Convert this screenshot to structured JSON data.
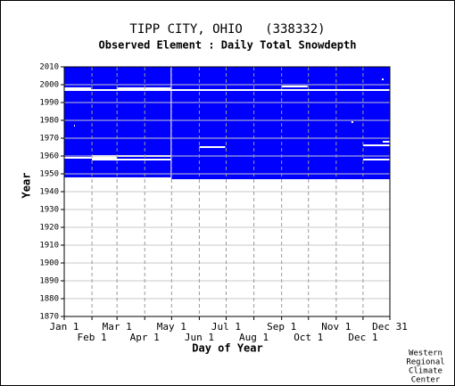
{
  "chart_data": {
    "type": "availability",
    "title": "TIPP CITY, OHIO   (338332)",
    "subtitle": "Observed Element : Daily Total Snowdepth",
    "x_label": "Day of Year",
    "y_label": "Year",
    "credit": [
      "Western",
      "Regional",
      "Climate",
      "Center"
    ],
    "color": "#0000ff",
    "grid": true,
    "xlim": [
      1,
      365
    ],
    "ylim": [
      1870,
      2010
    ],
    "yticks": [
      1870,
      1880,
      1890,
      1900,
      1910,
      1920,
      1930,
      1940,
      1950,
      1960,
      1970,
      1980,
      1990,
      2000,
      2010
    ],
    "xticks": [
      {
        "value": 1,
        "label": "Jan 1"
      },
      {
        "value": 32,
        "label": "Feb 1"
      },
      {
        "value": 60,
        "label": "Mar 1"
      },
      {
        "value": 91,
        "label": "Apr 1"
      },
      {
        "value": 121,
        "label": "May 1"
      },
      {
        "value": 152,
        "label": "Jun 1"
      },
      {
        "value": 182,
        "label": "Jul 1"
      },
      {
        "value": 213,
        "label": "Aug 1"
      },
      {
        "value": 244,
        "label": "Sep 1"
      },
      {
        "value": 274,
        "label": "Oct 1"
      },
      {
        "value": 305,
        "label": "Nov 1"
      },
      {
        "value": 335,
        "label": "Dec 1"
      },
      {
        "value": 365,
        "label": "Dec 31"
      }
    ],
    "periods": [
      {
        "year_start": 1948,
        "year_end": 2010,
        "day_start": 1,
        "day_end": 120
      },
      {
        "year_start": 1947,
        "year_end": 2010,
        "day_start": 121,
        "day_end": 365
      }
    ],
    "gaps": [
      {
        "year": 1997,
        "day_start": 1,
        "day_end": 365
      },
      {
        "year": 1998,
        "day_start": 1,
        "day_end": 31
      },
      {
        "year": 1998,
        "day_start": 60,
        "day_end": 120
      },
      {
        "year": 1999,
        "day_start": 244,
        "day_end": 273
      },
      {
        "year": 1965,
        "day_start": 152,
        "day_end": 181
      },
      {
        "year": 1966,
        "day_start": 335,
        "day_end": 365
      },
      {
        "year": 1959,
        "day_start": 1,
        "day_end": 60
      },
      {
        "year": 1960,
        "day_start": 32,
        "day_end": 120
      },
      {
        "year": 1958,
        "day_start": 32,
        "day_end": 120
      },
      {
        "year": 1958,
        "day_start": 335,
        "day_end": 365
      },
      {
        "year": 1968,
        "day_start": 357,
        "day_end": 365
      },
      {
        "year": 1979,
        "day_start": 322,
        "day_end": 324
      },
      {
        "year": 2003,
        "day_start": 356,
        "day_end": 358
      },
      {
        "year": 1977,
        "day_start": 12,
        "day_end": 13
      }
    ]
  }
}
